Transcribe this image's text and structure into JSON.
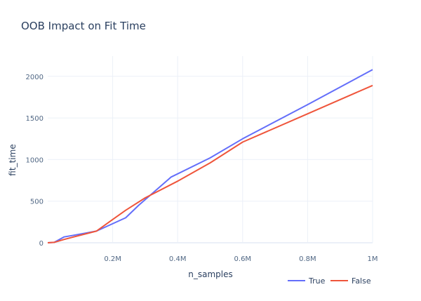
{
  "chart_data": {
    "type": "line",
    "title": "OOB Impact on Fit Time",
    "xlabel": "n_samples",
    "ylabel": "fit_time",
    "xlim": [
      0,
      1000000
    ],
    "ylim": [
      -30,
      2150
    ],
    "grid": true,
    "legend_position": "bottom-right",
    "x_ticks": [
      {
        "value": 200000,
        "label": "0.2M"
      },
      {
        "value": 400000,
        "label": "0.4M"
      },
      {
        "value": 600000,
        "label": "0.6M"
      },
      {
        "value": 800000,
        "label": "0.8M"
      },
      {
        "value": 1000000,
        "label": "1M"
      }
    ],
    "y_ticks": [
      {
        "value": 0,
        "label": "0"
      },
      {
        "value": 500,
        "label": "500"
      },
      {
        "value": 1000,
        "label": "1000"
      },
      {
        "value": 1500,
        "label": "1500"
      },
      {
        "value": 2000,
        "label": "2000"
      }
    ],
    "series": [
      {
        "name": "True",
        "color": "#636efa",
        "x": [
          0,
          20000,
          50000,
          80000,
          150000,
          240000,
          280000,
          380000,
          500000,
          600000,
          800000,
          1000000
        ],
        "y": [
          0,
          5,
          70,
          90,
          140,
          300,
          450,
          790,
          1020,
          1250,
          1660,
          2080
        ]
      },
      {
        "name": "False",
        "color": "#ef553b",
        "x": [
          0,
          20000,
          50000,
          80000,
          150000,
          200000,
          240000,
          300000,
          400000,
          500000,
          600000,
          800000,
          1000000
        ],
        "y": [
          0,
          5,
          40,
          70,
          140,
          280,
          390,
          540,
          740,
          960,
          1210,
          1550,
          1890
        ]
      }
    ]
  },
  "legend": {
    "items": [
      {
        "label": "True",
        "color": "#636efa"
      },
      {
        "label": "False",
        "color": "#ef553b"
      }
    ]
  }
}
